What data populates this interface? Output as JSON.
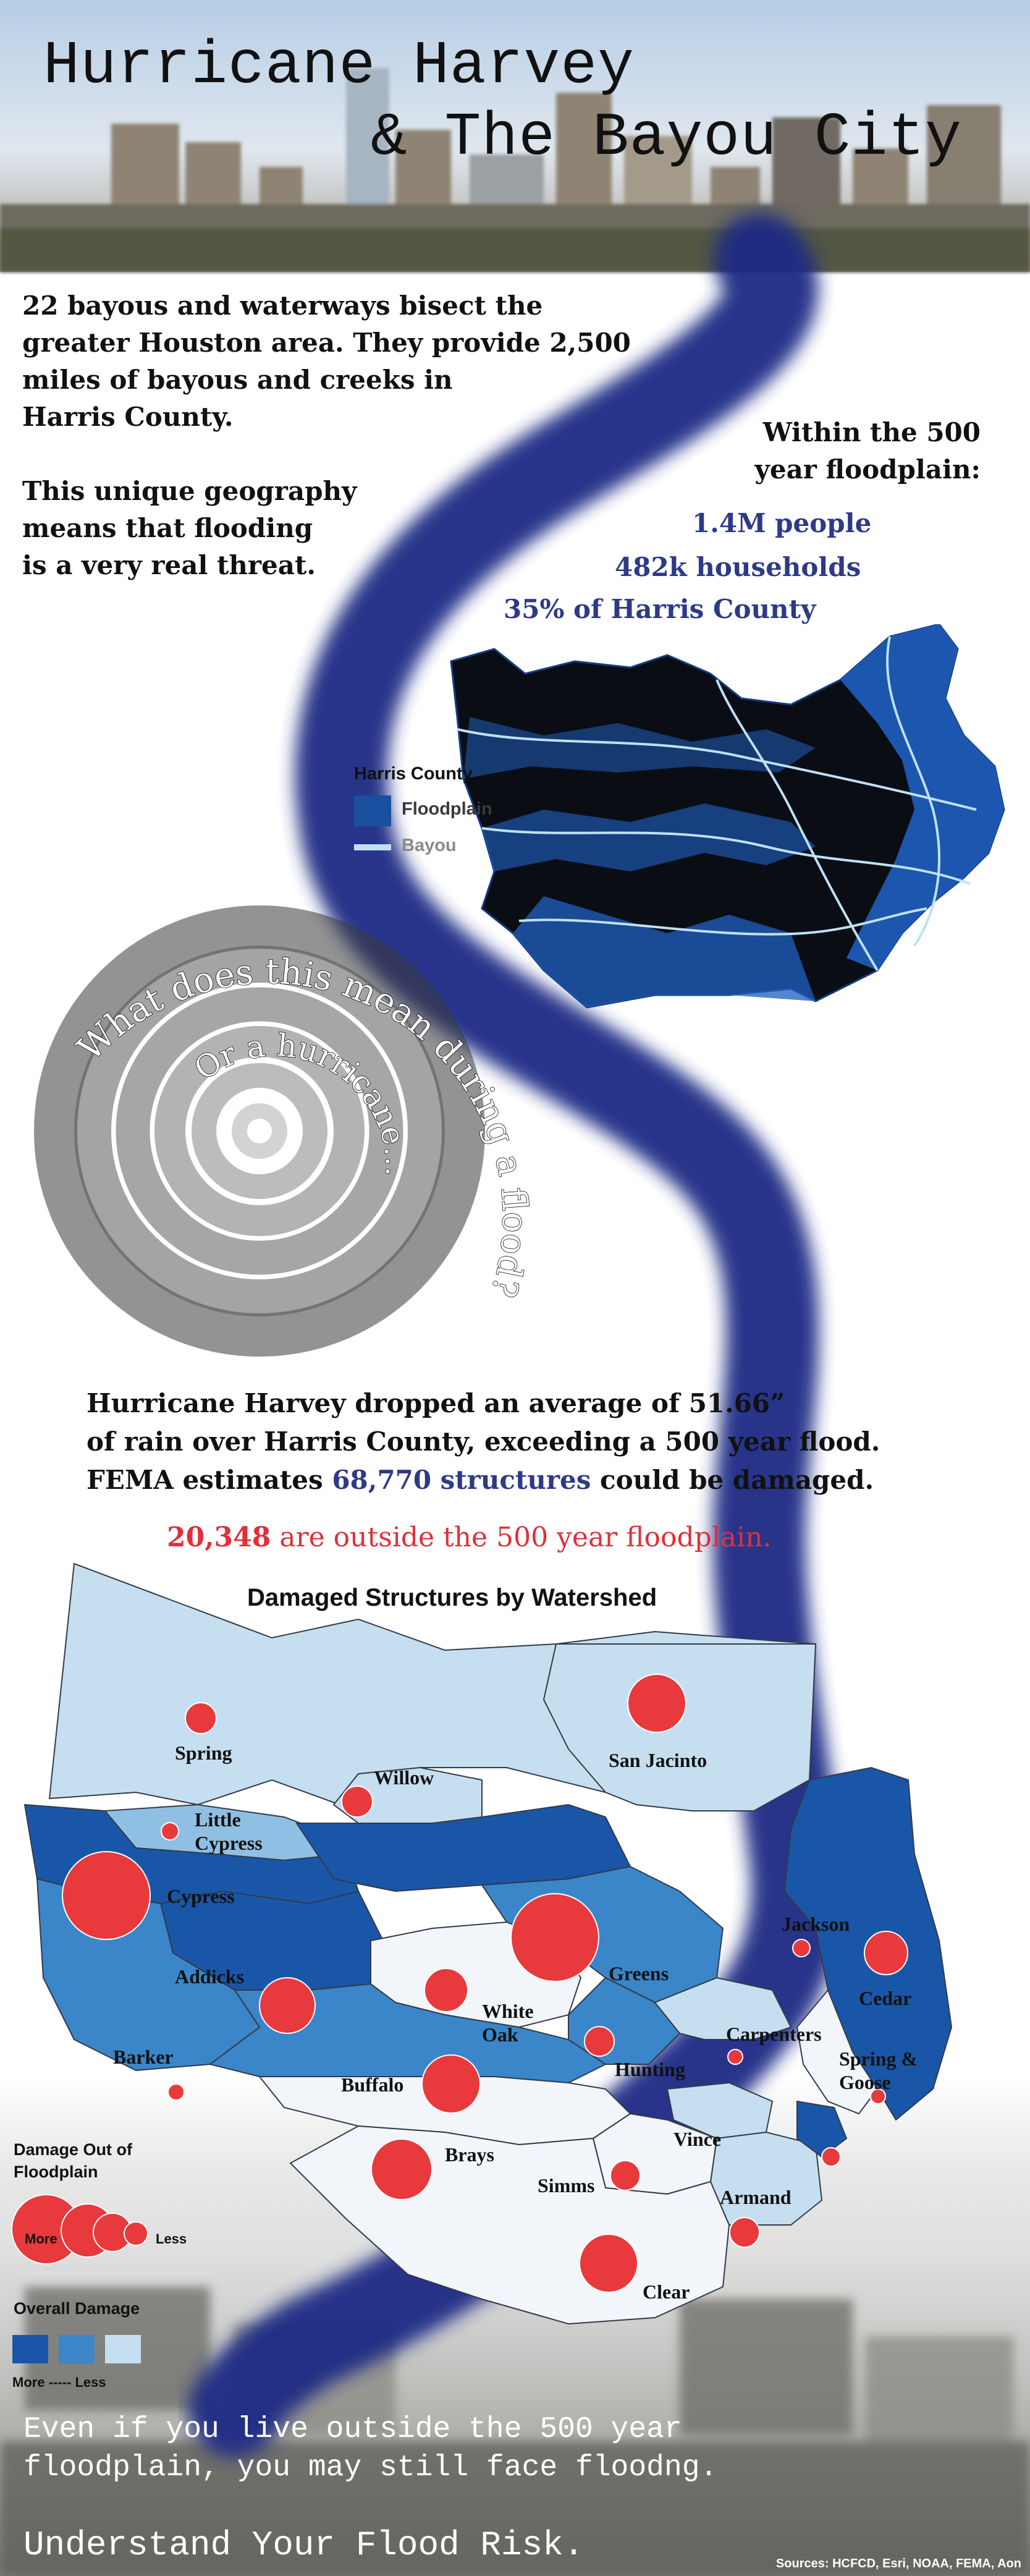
{
  "header": {
    "title_line1": "Hurricane Harvey",
    "title_line2": "& The Bayou City"
  },
  "intro": {
    "para1_line1": "22 bayous and waterways bisect the",
    "para1_line2": "greater Houston area. They provide 2,500",
    "para1_line3": "miles of bayous and creeks in",
    "para1_line4": "Harris County.",
    "para2_line1": "This unique geography",
    "para2_line2": "means that flooding",
    "para2_line3": "is a very real threat."
  },
  "floodplain_stats": {
    "heading_line1": "Within the 500",
    "heading_line2": "year floodplain:",
    "people": "1.4M people",
    "households": "482k households",
    "county_share": "35% of Harris County"
  },
  "harris_legend": {
    "title": "Harris County",
    "floodplain_label": "Floodplain",
    "bayou_label": "Bayou",
    "floodplain_color": "#1a4fa0",
    "bayou_color": "#bfe0f5"
  },
  "spiral": {
    "outer_text": "What does this mean during a flood?",
    "inner_text": "Or a hurricane..."
  },
  "harvey": {
    "line1": "Hurricane Harvey dropped an average of 51.66”",
    "line2": "of rain over Harris County, exceeding a 500 year flood.",
    "line3_pre": "FEMA estimates ",
    "line3_highlight": "68,770 structures",
    "line3_post": " could be damaged.",
    "outside_number": "20,348",
    "outside_text": " are outside the 500 year floodplain."
  },
  "watershed_map": {
    "title": "Damaged Structures by Watershed",
    "colors": {
      "lightest": "#c6dff0",
      "light": "#8fc0e4",
      "medium": "#3a86c8",
      "dark": "#1a56a8",
      "white": "#f2f6fb",
      "dot": "#e8393c"
    },
    "watersheds": [
      {
        "name": "Spring"
      },
      {
        "name": "San Jacinto"
      },
      {
        "name": "Willow"
      },
      {
        "name": "Little Cypress"
      },
      {
        "name": "Cypress"
      },
      {
        "name": "Addicks"
      },
      {
        "name": "Greens"
      },
      {
        "name": "Jackson"
      },
      {
        "name": "Cedar"
      },
      {
        "name": "White Oak"
      },
      {
        "name": "Carpenters"
      },
      {
        "name": "Barker"
      },
      {
        "name": "Buffalo"
      },
      {
        "name": "Hunting"
      },
      {
        "name": "Spring & Goose"
      },
      {
        "name": "Brays"
      },
      {
        "name": "Vince"
      },
      {
        "name": "Simms"
      },
      {
        "name": "Armand"
      },
      {
        "name": "Clear"
      }
    ]
  },
  "damage_legend": {
    "title_line1": "Damage Out of",
    "title_line2": "Floodplain",
    "more": "More",
    "less": "Less",
    "overall_title": "Overall Damage",
    "overall_more": "More",
    "overall_less": "Less",
    "overall_scale": "-----"
  },
  "footer": {
    "line1": "Even if you live outside the 500 year",
    "line2": "floodplain, you may still face floodng.",
    "cta": "Understand Your Flood Risk.",
    "sources": "Sources: HCFCD, Esri, NOAA, FEMA, Aon"
  }
}
